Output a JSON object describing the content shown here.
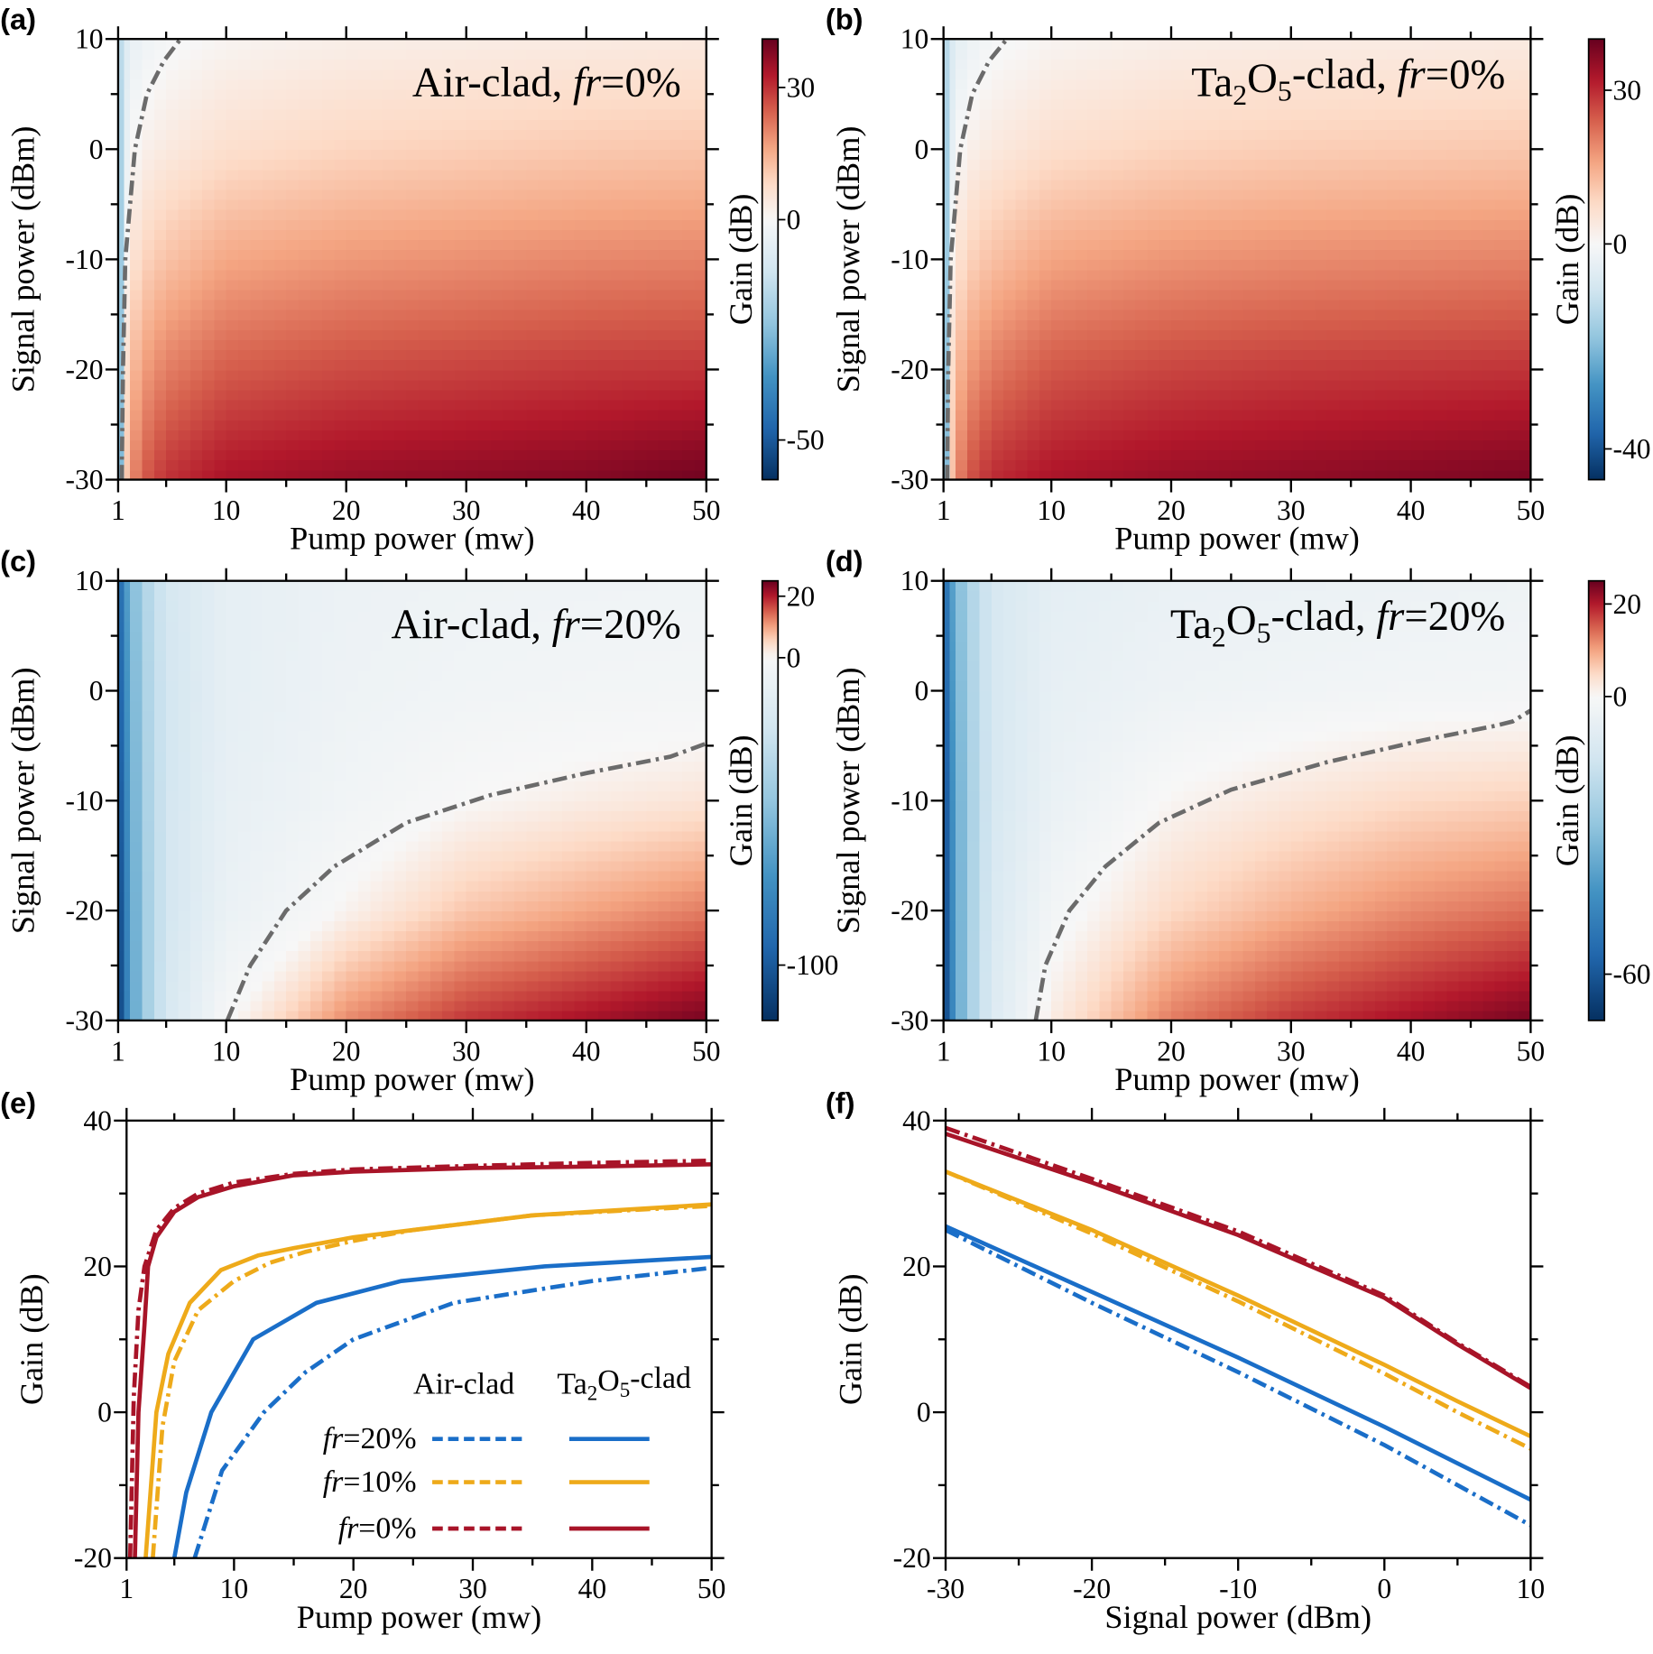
{
  "chart_data": [
    {
      "type": "heatmap",
      "panel": "(a)",
      "title": [
        {
          "text": "Air-clad, "
        },
        {
          "text": "fr",
          "style": "italic"
        },
        {
          "text": "=0%"
        }
      ],
      "xlabel": "Pump power (mw)",
      "ylabel": "Signal power (dBm)",
      "xlim": [
        1,
        50
      ],
      "xticks": [
        1,
        10,
        20,
        30,
        40,
        50
      ],
      "xminor": [
        5,
        15,
        25,
        35,
        45
      ],
      "ylim": [
        -30,
        10
      ],
      "yticks": [
        -30,
        -20,
        -10,
        0,
        10
      ],
      "yminor": [
        -25,
        -15,
        -5,
        5
      ],
      "x": [
        1,
        1.5,
        2,
        3,
        5,
        10,
        20,
        30,
        40,
        50
      ],
      "y": [
        -30,
        -20,
        -10,
        0,
        10
      ],
      "z": [
        [
          -58,
          5,
          18,
          25,
          30,
          34,
          36,
          37,
          38,
          40
        ],
        [
          -50,
          2,
          12,
          17,
          21,
          25,
          27,
          28,
          29,
          29.5
        ],
        [
          -40,
          -3,
          5,
          9,
          12,
          16,
          18,
          19,
          20,
          20.5
        ],
        [
          -30,
          -8,
          -1,
          2,
          4,
          7,
          9,
          10,
          11,
          11.5
        ],
        [
          -20,
          -10,
          -5,
          -3,
          -1,
          1,
          2.5,
          3,
          3.5,
          4
        ]
      ],
      "colorbar": {
        "label": "Gain (dB)",
        "lim": [
          -59,
          41
        ],
        "ticks": [
          -50,
          0,
          30
        ]
      },
      "colormap": [
        "#053061",
        "#2166ac",
        "#4393c3",
        "#92c5de",
        "#d1e5f0",
        "#f7f7f7",
        "#fddbc7",
        "#f4a582",
        "#d6604d",
        "#b2182b",
        "#67001f"
      ],
      "contour": {
        "color": "#6b6b6b",
        "x": [
          1.3,
          1.4,
          1.6,
          2.4,
          3.4,
          4.8,
          6.2
        ],
        "y": [
          -30,
          -20,
          -10,
          0,
          5,
          8,
          10
        ]
      }
    },
    {
      "type": "heatmap",
      "panel": "(b)",
      "title": [
        {
          "text": "Ta"
        },
        {
          "text": "2",
          "style": "sub"
        },
        {
          "text": "O"
        },
        {
          "text": "5",
          "style": "sub"
        },
        {
          "text": "-clad, "
        },
        {
          "text": "fr",
          "style": "italic"
        },
        {
          "text": "=0%"
        }
      ],
      "xlabel": "Pump power (mw)",
      "ylabel": "Signal power (dBm)",
      "xlim": [
        1,
        50
      ],
      "xticks": [
        1,
        10,
        20,
        30,
        40,
        50
      ],
      "xminor": [
        5,
        15,
        25,
        35,
        45
      ],
      "ylim": [
        -30,
        10
      ],
      "yticks": [
        -30,
        -20,
        -10,
        0,
        10
      ],
      "yminor": [
        -25,
        -15,
        -5,
        5
      ],
      "x": [
        1,
        1.5,
        2,
        3,
        5,
        10,
        20,
        30,
        40,
        50
      ],
      "y": [
        -30,
        -20,
        -10,
        0,
        10
      ],
      "z": [
        [
          -46,
          6,
          18,
          25,
          30,
          33,
          35,
          36,
          37,
          38
        ],
        [
          -40,
          3,
          12,
          17,
          21,
          25,
          27,
          28,
          28.5,
          29
        ],
        [
          -32,
          -2,
          5,
          9,
          12,
          16,
          18,
          19,
          19.5,
          20
        ],
        [
          -24,
          -7,
          -1,
          2,
          4,
          7,
          9,
          10,
          10.5,
          11
        ],
        [
          -16,
          -9,
          -5,
          -3,
          -1,
          1,
          2.5,
          3,
          3.2,
          3.5
        ]
      ],
      "colorbar": {
        "label": "Gain (dB)",
        "lim": [
          -46,
          40
        ],
        "ticks": [
          -40,
          0,
          30
        ]
      },
      "colormap": [
        "#053061",
        "#2166ac",
        "#4393c3",
        "#92c5de",
        "#d1e5f0",
        "#f7f7f7",
        "#fddbc7",
        "#f4a582",
        "#d6604d",
        "#b2182b",
        "#67001f"
      ],
      "contour": {
        "color": "#6b6b6b",
        "x": [
          1.3,
          1.4,
          1.6,
          2.4,
          3.4,
          4.8,
          6.3
        ],
        "y": [
          -30,
          -20,
          -10,
          0,
          5,
          8,
          10
        ]
      }
    },
    {
      "type": "heatmap",
      "panel": "(c)",
      "title": [
        {
          "text": "Air-clad, "
        },
        {
          "text": "fr",
          "style": "italic"
        },
        {
          "text": "=20%"
        }
      ],
      "xlabel": "Pump power (mw)",
      "ylabel": "Signal power (dBm)",
      "xlim": [
        1,
        50
      ],
      "xticks": [
        1,
        10,
        20,
        30,
        40,
        50
      ],
      "xminor": [
        5,
        15,
        25,
        35,
        45
      ],
      "ylim": [
        -30,
        10
      ],
      "yticks": [
        -30,
        -20,
        -10,
        0,
        10
      ],
      "yminor": [
        -25,
        -15,
        -5,
        5
      ],
      "x": [
        1,
        1.5,
        2,
        3,
        5,
        10,
        20,
        30,
        40,
        50
      ],
      "y": [
        -30,
        -20,
        -10,
        0,
        10
      ],
      "z": [
        [
          -118,
          -90,
          -70,
          -45,
          -20,
          -0.5,
          12,
          18,
          21,
          24
        ],
        [
          -115,
          -88,
          -68,
          -44,
          -22,
          -8,
          1,
          7,
          10,
          13
        ],
        [
          -110,
          -85,
          -65,
          -42,
          -22,
          -10,
          -4,
          0,
          2,
          3.5
        ],
        [
          -105,
          -80,
          -62,
          -40,
          -22,
          -11,
          -6,
          -4,
          -3,
          -2.5
        ],
        [
          -100,
          -75,
          -58,
          -38,
          -21,
          -11,
          -7,
          -5.5,
          -5,
          -4.5
        ]
      ],
      "colorbar": {
        "label": "Gain (dB)",
        "lim": [
          -118,
          25
        ],
        "ticks": [
          -100,
          0,
          20
        ]
      },
      "colormap": [
        "#053061",
        "#2166ac",
        "#4393c3",
        "#92c5de",
        "#d1e5f0",
        "#f7f7f7",
        "#fddbc7",
        "#f4a582",
        "#d6604d",
        "#b2182b",
        "#67001f"
      ],
      "contour": {
        "color": "#6b6b6b",
        "x": [
          10.1,
          12,
          15,
          19,
          25,
          32,
          40,
          47,
          50
        ],
        "y": [
          -30,
          -25,
          -20,
          -16,
          -12,
          -9.5,
          -7.5,
          -6,
          -4.8
        ]
      }
    },
    {
      "type": "heatmap",
      "panel": "(d)",
      "title": [
        {
          "text": "Ta"
        },
        {
          "text": "2",
          "style": "sub"
        },
        {
          "text": "O"
        },
        {
          "text": "5",
          "style": "sub"
        },
        {
          "text": "-clad, "
        },
        {
          "text": "fr",
          "style": "italic"
        },
        {
          "text": "=20%"
        }
      ],
      "xlabel": "Pump power (mw)",
      "ylabel": "Signal power (dBm)",
      "xlim": [
        1,
        50
      ],
      "xticks": [
        1,
        10,
        20,
        30,
        40,
        50
      ],
      "xminor": [
        5,
        15,
        25,
        35,
        45
      ],
      "ylim": [
        -30,
        10
      ],
      "yticks": [
        -30,
        -20,
        -10,
        0,
        10
      ],
      "yminor": [
        -25,
        -15,
        -5,
        5
      ],
      "x": [
        1,
        1.5,
        2,
        3,
        5,
        10,
        20,
        30,
        40,
        50
      ],
      "y": [
        -30,
        -20,
        -10,
        0,
        10
      ],
      "z": [
        [
          -70,
          -52,
          -40,
          -25,
          -10,
          2,
          13,
          18,
          21,
          24
        ],
        [
          -68,
          -50,
          -39,
          -25,
          -11,
          -2,
          5,
          9,
          12,
          14
        ],
        [
          -66,
          -49,
          -38,
          -25,
          -12,
          -5,
          0.5,
          3,
          5,
          6
        ],
        [
          -62,
          -46,
          -36,
          -24,
          -12,
          -6,
          -3.5,
          -2.5,
          -1.8,
          -1.5
        ],
        [
          -58,
          -43,
          -34,
          -23,
          -12,
          -7,
          -5,
          -4.5,
          -4,
          -3.5
        ]
      ],
      "colorbar": {
        "label": "Gain (dB)",
        "lim": [
          -70,
          25
        ],
        "ticks": [
          -60,
          0,
          20
        ]
      },
      "colormap": [
        "#053061",
        "#2166ac",
        "#4393c3",
        "#92c5de",
        "#d1e5f0",
        "#f7f7f7",
        "#fddbc7",
        "#f4a582",
        "#d6604d",
        "#b2182b",
        "#67001f"
      ],
      "contour": {
        "color": "#6b6b6b",
        "x": [
          8.7,
          9.5,
          11.5,
          14.5,
          19,
          25,
          33,
          41,
          47,
          48.5,
          50
        ],
        "y": [
          -30,
          -25,
          -20,
          -16,
          -12,
          -9,
          -6.5,
          -4.5,
          -3.2,
          -2.8,
          -1.8
        ]
      }
    },
    {
      "type": "line",
      "panel": "(e)",
      "xlabel": "Pump power (mw)",
      "ylabel": "Gain (dB)",
      "xlim": [
        1,
        50
      ],
      "xticks": [
        1,
        10,
        20,
        30,
        40,
        50
      ],
      "xminor": [
        5,
        15,
        25,
        35,
        45
      ],
      "ylim": [
        -20,
        40
      ],
      "yticks": [
        -20,
        0,
        20,
        40
      ],
      "yminor": [
        -10,
        10,
        30
      ],
      "series": [
        {
          "color": "#1a6ec8",
          "linestyle": "dashdot",
          "x": [
            6.7,
            9,
            12.5,
            16,
            20,
            28.4,
            40,
            50
          ],
          "values": [
            -20,
            -8,
            0,
            5.5,
            10,
            15,
            18,
            19.8
          ]
        },
        {
          "color": "#1a6ec8",
          "linestyle": "solid",
          "x": [
            5,
            6,
            8.1,
            11.6,
            16.9,
            24,
            30,
            36,
            50
          ],
          "values": [
            -20,
            -11,
            0,
            10,
            15,
            18,
            19,
            20,
            21.3
          ]
        },
        {
          "color": "#eeaa1a",
          "linestyle": "dashdot",
          "x": [
            3.2,
            4,
            5,
            7,
            10,
            13,
            16,
            20,
            25,
            35,
            50
          ],
          "values": [
            -20,
            -2,
            7,
            14,
            18,
            20.5,
            22,
            23.5,
            25,
            27,
            28.3
          ]
        },
        {
          "color": "#eeaa1a",
          "linestyle": "solid",
          "x": [
            2.6,
            3.5,
            4.5,
            6.3,
            8.9,
            12,
            15,
            20,
            25,
            35,
            50
          ],
          "values": [
            -20,
            0,
            8,
            15,
            19.5,
            21.5,
            22.5,
            24,
            25,
            27,
            28.5
          ]
        },
        {
          "color": "#a81428",
          "linestyle": "dashdot",
          "x": [
            1.3,
            1.6,
            2,
            2.5,
            3.5,
            5,
            7,
            10,
            15,
            20,
            30,
            40,
            50
          ],
          "values": [
            -20,
            2,
            14,
            20,
            25,
            28,
            30,
            31.5,
            32.7,
            33.3,
            33.8,
            34.2,
            34.5
          ]
        },
        {
          "color": "#a81428",
          "linestyle": "solid",
          "x": [
            1.7,
            2,
            2.5,
            2.8,
            3.5,
            5,
            7,
            10,
            15,
            20,
            30,
            40,
            50
          ],
          "values": [
            -20,
            0,
            12,
            20,
            24,
            27.5,
            29.5,
            31,
            32.5,
            33,
            33.5,
            33.7,
            34
          ]
        }
      ],
      "legend": {
        "columns": [
          [
            {
              "text": "Air-clad"
            }
          ],
          [
            {
              "text": "Ta"
            },
            {
              "text": "2",
              "style": "sub"
            },
            {
              "text": "O"
            },
            {
              "text": "5",
              "style": "sub"
            },
            {
              "text": "-clad"
            }
          ]
        ],
        "rows": [
          [
            {
              "text": "fr",
              "style": "italic"
            },
            {
              "text": "=20%"
            }
          ],
          [
            {
              "text": "fr",
              "style": "italic"
            },
            {
              "text": "=10%"
            }
          ],
          [
            {
              "text": "fr",
              "style": "italic"
            },
            {
              "text": "=0%"
            }
          ]
        ]
      }
    },
    {
      "type": "line",
      "panel": "(f)",
      "xlabel": "Signal power (dBm)",
      "ylabel": "Gain (dB)",
      "xlim": [
        -30,
        10
      ],
      "xticks": [
        -30,
        -20,
        -10,
        0,
        10
      ],
      "xminor": [
        -25,
        -15,
        -5,
        5
      ],
      "ylim": [
        -20,
        40
      ],
      "yticks": [
        -20,
        0,
        20,
        40
      ],
      "yminor": [
        -10,
        10,
        30
      ],
      "series": [
        {
          "color": "#1a6ec8",
          "linestyle": "dashdot",
          "x": [
            -30,
            -20,
            -10,
            0,
            5,
            10
          ],
          "values": [
            25,
            15,
            5.5,
            -4.5,
            -10,
            -15.5
          ]
        },
        {
          "color": "#1a6ec8",
          "linestyle": "solid",
          "x": [
            -30,
            -20,
            -10,
            0,
            5,
            10
          ],
          "values": [
            25.5,
            16.5,
            7.5,
            -2,
            -7,
            -12
          ]
        },
        {
          "color": "#eeaa1a",
          "linestyle": "dashdot",
          "x": [
            -30,
            -20,
            -10,
            0,
            5,
            10
          ],
          "values": [
            33,
            24.5,
            15.2,
            5.3,
            0,
            -5
          ]
        },
        {
          "color": "#eeaa1a",
          "linestyle": "solid",
          "x": [
            -30,
            -20,
            -10,
            0,
            5,
            10
          ],
          "values": [
            33,
            25,
            16,
            6.5,
            1.5,
            -3.3
          ]
        },
        {
          "color": "#a81428",
          "linestyle": "dashdot",
          "x": [
            -30,
            -20,
            -10,
            0,
            5,
            10
          ],
          "values": [
            39,
            32,
            24.8,
            16,
            9.5,
            3.5
          ]
        },
        {
          "color": "#a81428",
          "linestyle": "solid",
          "x": [
            -30,
            -20,
            -10,
            0,
            5,
            10
          ],
          "values": [
            38.2,
            31.5,
            24.3,
            15.7,
            9.3,
            3.3
          ]
        }
      ]
    }
  ]
}
